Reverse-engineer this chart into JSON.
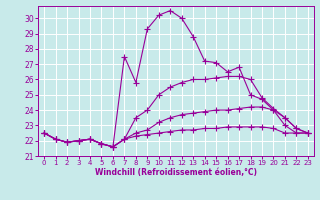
{
  "bg_color": "#c8eaea",
  "grid_color": "#ffffff",
  "line_color": "#990099",
  "xlabel": "Windchill (Refroidissement éolien,°C)",
  "xlim": [
    -0.5,
    23.5
  ],
  "ylim": [
    21.0,
    30.8
  ],
  "yticks": [
    21,
    22,
    23,
    24,
    25,
    26,
    27,
    28,
    29,
    30
  ],
  "xticks": [
    0,
    1,
    2,
    3,
    4,
    5,
    6,
    7,
    8,
    9,
    10,
    11,
    12,
    13,
    14,
    15,
    16,
    17,
    18,
    19,
    20,
    21,
    22,
    23
  ],
  "series": [
    {
      "x": [
        0,
        1,
        2,
        3,
        4,
        5,
        6,
        7,
        8,
        9,
        10,
        11,
        12,
        13,
        14,
        15,
        16,
        17,
        18,
        19,
        20,
        21,
        22,
        23
      ],
      "y": [
        22.5,
        22.1,
        21.9,
        22.0,
        22.1,
        21.8,
        21.6,
        22.1,
        22.3,
        22.4,
        22.5,
        22.6,
        22.7,
        22.7,
        22.8,
        22.8,
        22.9,
        22.9,
        22.9,
        22.9,
        22.8,
        22.5,
        22.5,
        22.5
      ]
    },
    {
      "x": [
        0,
        1,
        2,
        3,
        4,
        5,
        6,
        7,
        8,
        9,
        10,
        11,
        12,
        13,
        14,
        15,
        16,
        17,
        18,
        19,
        20,
        21,
        22,
        23
      ],
      "y": [
        22.5,
        22.1,
        21.9,
        22.0,
        22.1,
        21.8,
        21.6,
        22.1,
        22.5,
        22.7,
        23.2,
        23.5,
        23.7,
        23.8,
        23.9,
        24.0,
        24.0,
        24.1,
        24.2,
        24.2,
        24.0,
        23.0,
        22.5,
        22.5
      ]
    },
    {
      "x": [
        0,
        1,
        2,
        3,
        4,
        5,
        6,
        7,
        8,
        9,
        10,
        11,
        12,
        13,
        14,
        15,
        16,
        17,
        18,
        19,
        20,
        21,
        22,
        23
      ],
      "y": [
        22.5,
        22.1,
        21.9,
        22.0,
        22.1,
        21.8,
        21.6,
        22.1,
        23.5,
        24.0,
        25.0,
        25.5,
        25.8,
        26.0,
        26.0,
        26.1,
        26.2,
        26.2,
        26.0,
        24.8,
        24.1,
        23.5,
        22.8,
        22.5
      ]
    },
    {
      "x": [
        0,
        1,
        2,
        3,
        4,
        5,
        6,
        7,
        8,
        9,
        10,
        11,
        12,
        13,
        14,
        15,
        16,
        17,
        18,
        19,
        20,
        21,
        22,
        23
      ],
      "y": [
        22.5,
        22.1,
        21.9,
        22.0,
        22.1,
        21.8,
        21.6,
        27.5,
        25.8,
        29.3,
        30.2,
        30.5,
        30.0,
        28.8,
        27.2,
        27.1,
        26.5,
        26.8,
        25.0,
        24.7,
        24.0,
        23.5,
        22.8,
        22.5
      ]
    }
  ]
}
